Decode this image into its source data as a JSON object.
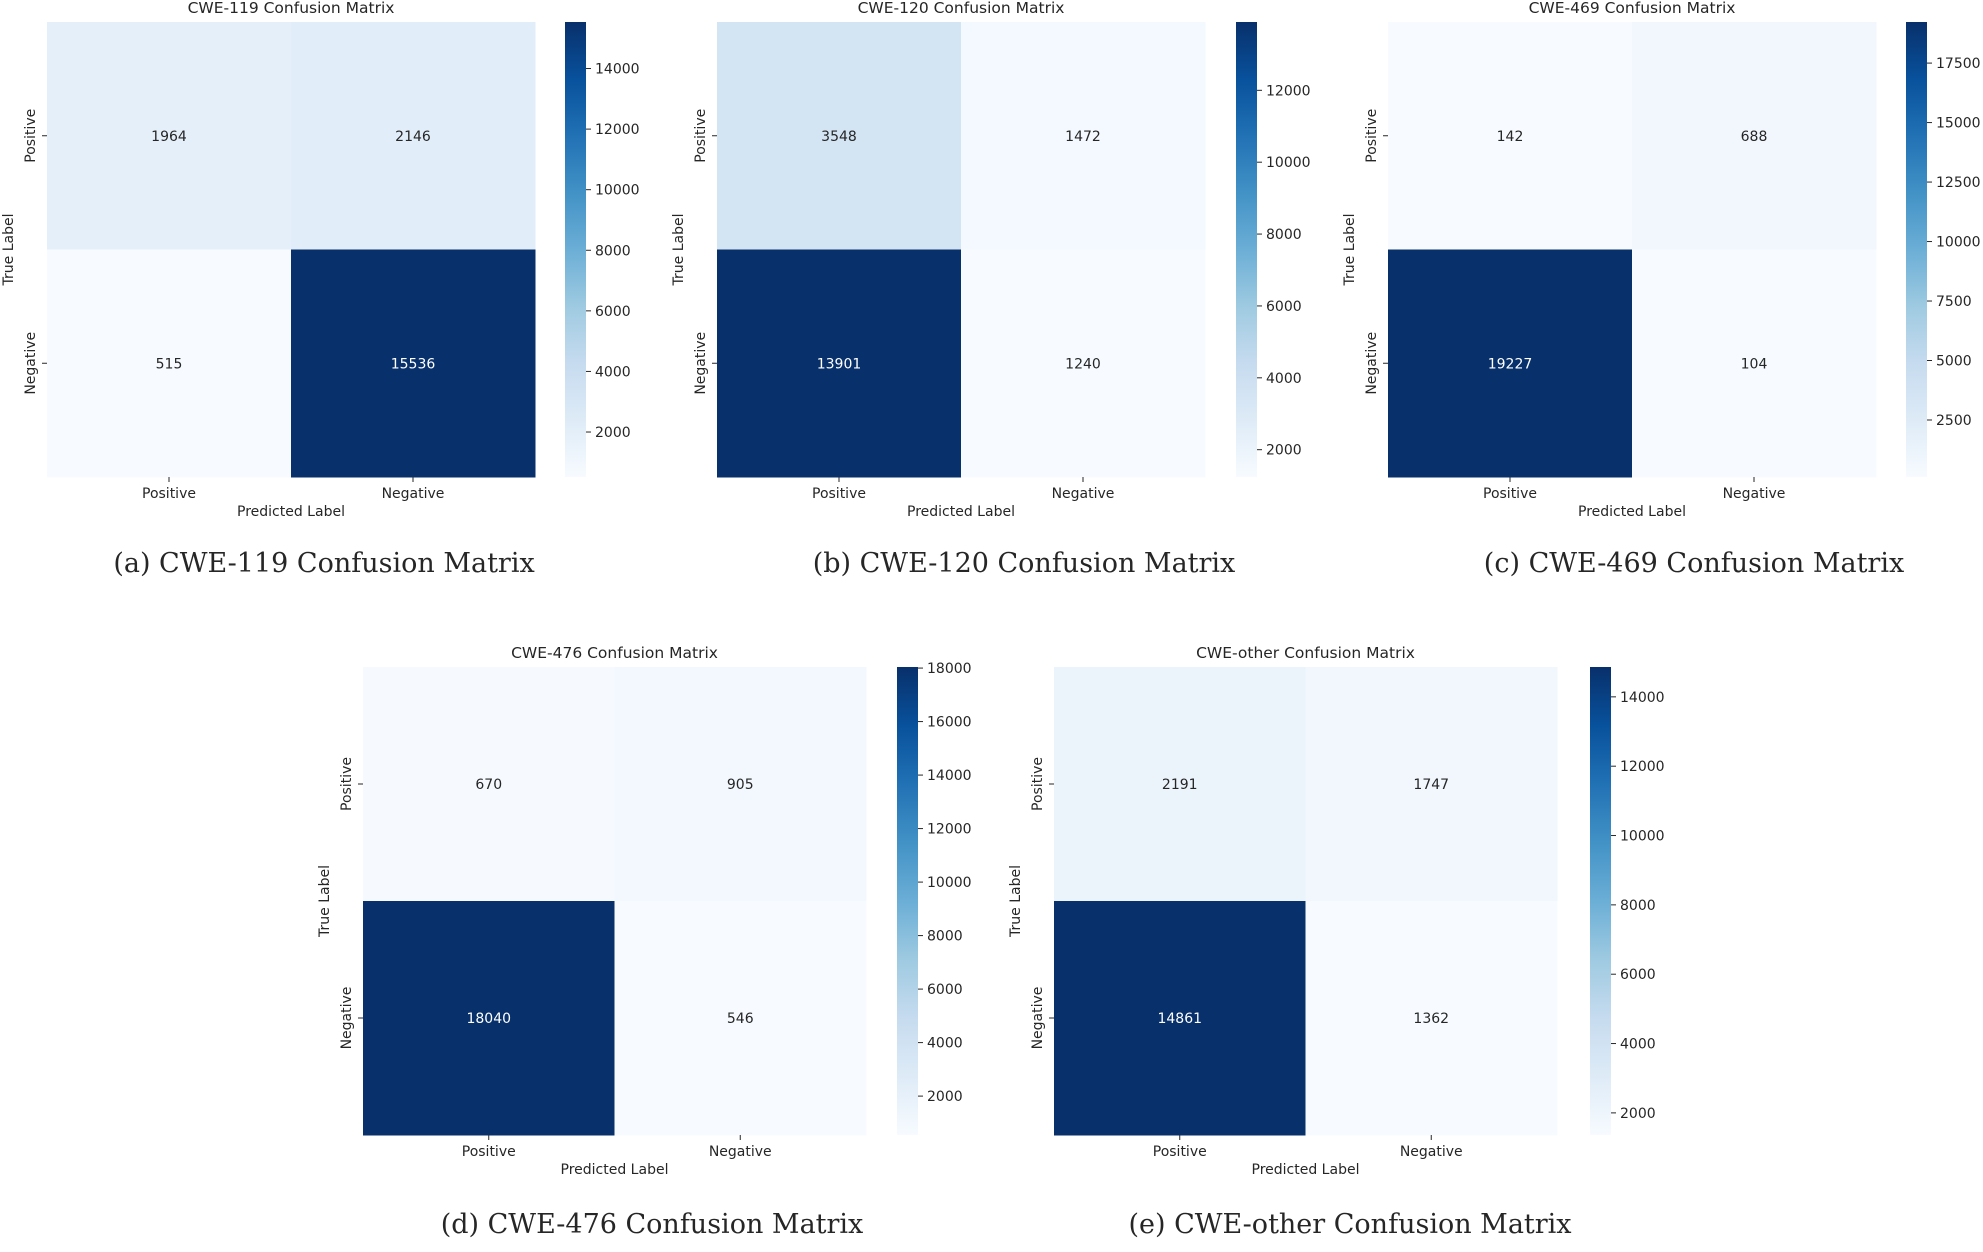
{
  "chart_data": [
    {
      "type": "heatmap",
      "title": "CWE-119 Confusion Matrix",
      "caption": "(a)  CWE-119 Confusion Matrix",
      "xlabel": "Predicted Label",
      "ylabel": "True Label",
      "x_categories": [
        "Positive",
        "Negative"
      ],
      "y_categories": [
        "Positive",
        "Negative"
      ],
      "values": [
        [
          1964,
          2146
        ],
        [
          515,
          15536
        ]
      ],
      "colorbar": {
        "range": [
          515,
          15536
        ],
        "ticks": [
          2000,
          4000,
          6000,
          8000,
          10000,
          12000,
          14000
        ]
      }
    },
    {
      "type": "heatmap",
      "title": "CWE-120 Confusion Matrix",
      "caption": "(b)  CWE-120 Confusion Matrix",
      "xlabel": "Predicted Label",
      "ylabel": "True Label",
      "x_categories": [
        "Positive",
        "Negative"
      ],
      "y_categories": [
        "Positive",
        "Negative"
      ],
      "values": [
        [
          3548,
          1472
        ],
        [
          13901,
          1240
        ]
      ],
      "colorbar": {
        "range": [
          1240,
          13901
        ],
        "ticks": [
          2000,
          4000,
          6000,
          8000,
          10000,
          12000
        ]
      }
    },
    {
      "type": "heatmap",
      "title": "CWE-469 Confusion Matrix",
      "caption": "(c)  CWE-469 Confusion Matrix",
      "xlabel": "Predicted Label",
      "ylabel": "True Label",
      "x_categories": [
        "Positive",
        "Negative"
      ],
      "y_categories": [
        "Positive",
        "Negative"
      ],
      "values": [
        [
          142,
          688
        ],
        [
          19227,
          104
        ]
      ],
      "colorbar": {
        "range": [
          104,
          19227
        ],
        "ticks": [
          2500,
          5000,
          7500,
          10000,
          12500,
          15000,
          17500
        ]
      }
    },
    {
      "type": "heatmap",
      "title": "CWE-476 Confusion Matrix",
      "caption": "(d)  CWE-476 Confusion Matrix",
      "xlabel": "Predicted Label",
      "ylabel": "True Label",
      "x_categories": [
        "Positive",
        "Negative"
      ],
      "y_categories": [
        "Positive",
        "Negative"
      ],
      "values": [
        [
          670,
          905
        ],
        [
          18040,
          546
        ]
      ],
      "colorbar": {
        "range": [
          546,
          18040
        ],
        "ticks": [
          2000,
          4000,
          6000,
          8000,
          10000,
          12000,
          14000,
          16000,
          18000
        ]
      }
    },
    {
      "type": "heatmap",
      "title": "CWE-other Confusion Matrix",
      "caption": "(e)  CWE-other Confusion Matrix",
      "xlabel": "Predicted Label",
      "ylabel": "True Label",
      "x_categories": [
        "Positive",
        "Negative"
      ],
      "y_categories": [
        "Positive",
        "Negative"
      ],
      "values": [
        [
          2191,
          1747
        ],
        [
          14861,
          1362
        ]
      ],
      "colorbar": {
        "range": [
          1362,
          14861
        ],
        "ticks": [
          2000,
          4000,
          6000,
          8000,
          10000,
          12000,
          14000
        ]
      }
    }
  ],
  "colors": {
    "low": "#f7fbff",
    "high": "#08306b",
    "dark_text": "#262626",
    "light_text": "#ffffff"
  }
}
